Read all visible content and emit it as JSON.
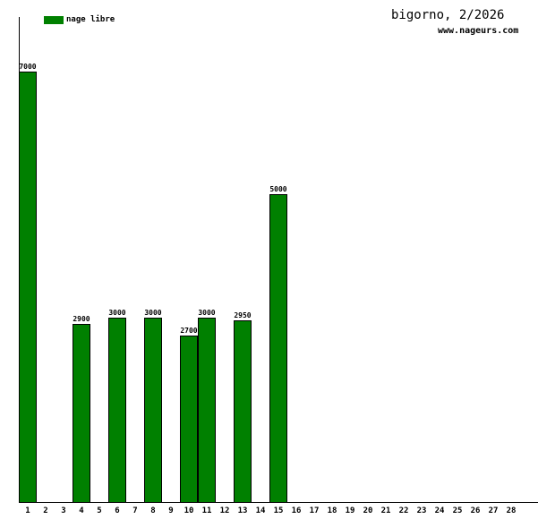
{
  "header": {
    "title": "bigorno, 2/2026",
    "website": "www.nageurs.com"
  },
  "legend": {
    "label": "nage libre",
    "color": "#008000"
  },
  "colors": {
    "bar_fill": "#008000",
    "bar_border": "#000000",
    "axis": "#000000",
    "background": "#ffffff",
    "text": "#000000"
  },
  "chart_data": {
    "type": "bar",
    "title": "bigorno, 2/2026",
    "subtitle": "www.nageurs.com",
    "xlabel": "",
    "ylabel": "",
    "categories": [
      "1",
      "2",
      "3",
      "4",
      "5",
      "6",
      "7",
      "8",
      "9",
      "10",
      "11",
      "12",
      "13",
      "14",
      "15",
      "16",
      "17",
      "18",
      "19",
      "20",
      "21",
      "22",
      "23",
      "24",
      "25",
      "26",
      "27",
      "28"
    ],
    "series": [
      {
        "name": "nage libre",
        "color": "#008000",
        "values": [
          7000,
          0,
          0,
          2900,
          0,
          3000,
          0,
          3000,
          0,
          2700,
          3000,
          0,
          2950,
          0,
          5000,
          0,
          0,
          0,
          0,
          0,
          0,
          0,
          0,
          0,
          0,
          0,
          0,
          0
        ]
      }
    ],
    "bar_value_labels": [
      7000,
      2900,
      3000,
      3000,
      2700,
      3000,
      2950,
      5000
    ],
    "days_with_bars": [
      1,
      4,
      6,
      8,
      10,
      11,
      13,
      15
    ],
    "ylim": [
      0,
      7900
    ],
    "grid": false,
    "legend_position": "top-left",
    "y_axis_ticks": "none"
  }
}
